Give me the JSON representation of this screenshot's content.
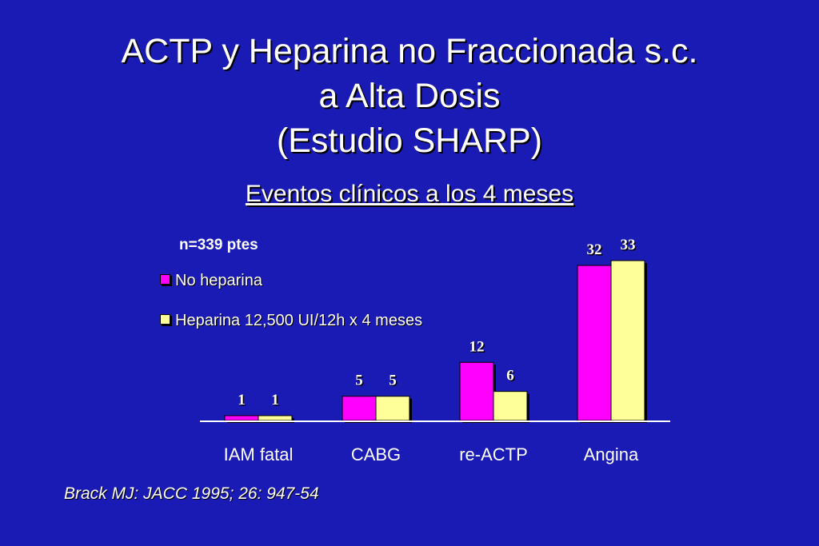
{
  "slide": {
    "title_lines": [
      "ACTP y Heparina no Fraccionada s.c.",
      "a Alta Dosis",
      "(Estudio SHARP)"
    ],
    "subtitle": "Eventos clínicos a los 4 meses",
    "note": "n=339 ptes",
    "citation": "Brack MJ: JACC 1995; 26: 947-54"
  },
  "legend": [
    {
      "label": "No heparina",
      "color": "#ff00ff"
    },
    {
      "label": "Heparina 12,500 UI/12h x 4 meses",
      "color": "#ffff99"
    }
  ],
  "chart_data": {
    "type": "bar",
    "categories": [
      "IAM fatal",
      "CABG",
      "re-ACTP",
      "Angina"
    ],
    "series": [
      {
        "name": "No heparina",
        "values": [
          1,
          5,
          12,
          32
        ],
        "color": "#ff00ff"
      },
      {
        "name": "Heparina 12,500 UI/12h x 4 meses",
        "values": [
          1,
          5,
          6,
          33
        ],
        "color": "#ffff99"
      }
    ],
    "ylim": [
      0,
      33
    ],
    "legend_position": "top-left",
    "grid": false
  }
}
